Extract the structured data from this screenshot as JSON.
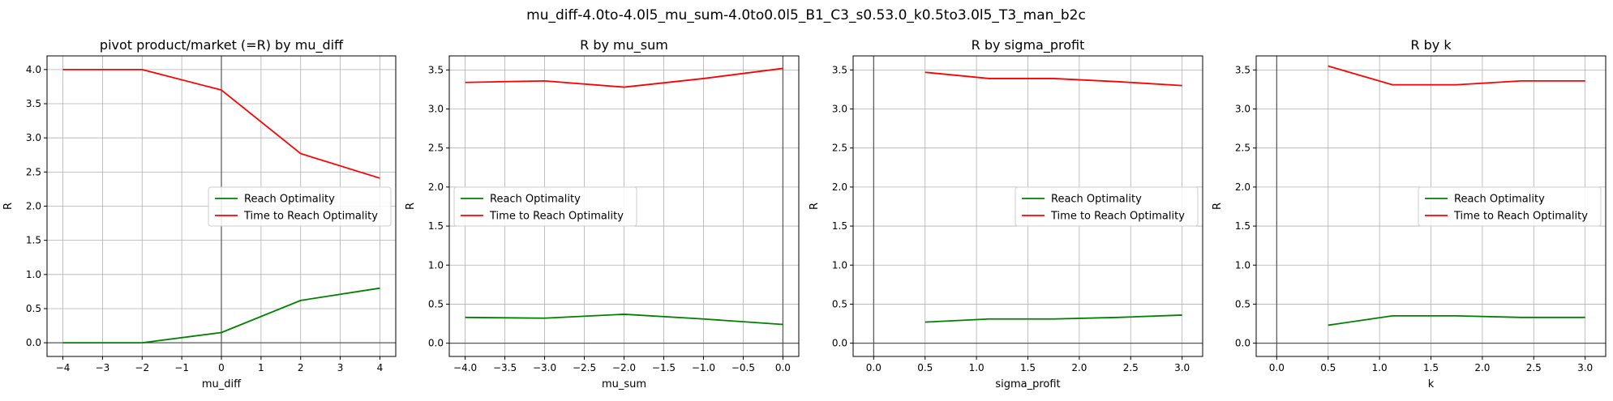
{
  "suptitle": "mu_diff-4.0to-4.0l5_mu_sum-4.0to0.0l5_B1_C3_s0.53.0_k0.5to3.0l5_T3_man_b2c",
  "colors": {
    "reach": "#008000",
    "time": "#ff0000"
  },
  "chart_data": [
    {
      "type": "line",
      "title": "pivot product/market (=R) by mu_diff",
      "xlabel": "mu_diff",
      "ylabel": "R",
      "xlim": [
        -4.4,
        4.4
      ],
      "ylim": [
        -0.2,
        4.2
      ],
      "xticks": [
        -4,
        -3,
        -2,
        -1,
        0,
        1,
        2,
        3,
        4
      ],
      "xtick_labels": [
        "−4",
        "−3",
        "−2",
        "−1",
        "0",
        "1",
        "2",
        "3",
        "4"
      ],
      "yticks": [
        0,
        0.5,
        1,
        1.5,
        2,
        2.5,
        3,
        3.5,
        4
      ],
      "ytick_labels": [
        "0.0",
        "0.5",
        "1.0",
        "1.5",
        "2.0",
        "2.5",
        "3.0",
        "3.5",
        "4.0"
      ],
      "grid": true,
      "legend_position": "center-right",
      "x": [
        -4,
        -2,
        0,
        2,
        4
      ],
      "series": [
        {
          "name": "Reach Optimality",
          "color": "#008000",
          "values": [
            0.0,
            0.0,
            0.15,
            0.62,
            0.8
          ]
        },
        {
          "name": "Time to Reach Optimality",
          "color": "#ff0000",
          "values": [
            4.0,
            4.0,
            3.7,
            2.77,
            2.41
          ]
        }
      ]
    },
    {
      "type": "line",
      "title": "R by mu_sum",
      "xlabel": "mu_sum",
      "ylabel": "R",
      "xlim": [
        -4.2,
        0.2
      ],
      "ylim": [
        -0.17,
        3.68
      ],
      "xticks": [
        -4,
        -3.5,
        -3,
        -2.5,
        -2,
        -1.5,
        -1,
        -0.5,
        0
      ],
      "xtick_labels": [
        "−4.0",
        "−3.5",
        "−3.0",
        "−2.5",
        "−2.0",
        "−1.5",
        "−1.0",
        "−0.5",
        "0.0"
      ],
      "yticks": [
        0,
        0.5,
        1,
        1.5,
        2,
        2.5,
        3,
        3.5
      ],
      "ytick_labels": [
        "0.0",
        "0.5",
        "1.0",
        "1.5",
        "2.0",
        "2.5",
        "3.0",
        "3.5"
      ],
      "grid": true,
      "legend_position": "center-left",
      "x": [
        -4,
        -3,
        -2,
        -1,
        0
      ],
      "series": [
        {
          "name": "Reach Optimality",
          "color": "#008000",
          "values": [
            0.33,
            0.32,
            0.37,
            0.31,
            0.24
          ]
        },
        {
          "name": "Time to Reach Optimality",
          "color": "#ff0000",
          "values": [
            3.34,
            3.36,
            3.28,
            3.39,
            3.52
          ]
        }
      ]
    },
    {
      "type": "line",
      "title": "R by sigma_profit",
      "xlabel": "sigma_profit",
      "ylabel": "R",
      "xlim": [
        -0.2,
        3.2
      ],
      "ylim": [
        -0.17,
        3.68
      ],
      "xticks": [
        0,
        0.5,
        1,
        1.5,
        2,
        2.5,
        3
      ],
      "xtick_labels": [
        "0.0",
        "0.5",
        "1.0",
        "1.5",
        "2.0",
        "2.5",
        "3.0"
      ],
      "yticks": [
        0,
        0.5,
        1,
        1.5,
        2,
        2.5,
        3,
        3.5
      ],
      "ytick_labels": [
        "0.0",
        "0.5",
        "1.0",
        "1.5",
        "2.0",
        "2.5",
        "3.0",
        "3.5"
      ],
      "grid": true,
      "legend_position": "center-right",
      "x": [
        0.5,
        1.125,
        1.75,
        2.375,
        3.0
      ],
      "series": [
        {
          "name": "Reach Optimality",
          "color": "#008000",
          "values": [
            0.27,
            0.31,
            0.31,
            0.33,
            0.36
          ]
        },
        {
          "name": "Time to Reach Optimality",
          "color": "#ff0000",
          "values": [
            3.47,
            3.39,
            3.39,
            3.35,
            3.3
          ]
        }
      ]
    },
    {
      "type": "line",
      "title": "R by k",
      "xlabel": "k",
      "ylabel": "R",
      "xlim": [
        -0.2,
        3.2
      ],
      "ylim": [
        -0.17,
        3.68
      ],
      "xticks": [
        0,
        0.5,
        1,
        1.5,
        2,
        2.5,
        3
      ],
      "xtick_labels": [
        "0.0",
        "0.5",
        "1.0",
        "1.5",
        "2.0",
        "2.5",
        "3.0"
      ],
      "yticks": [
        0,
        0.5,
        1,
        1.5,
        2,
        2.5,
        3,
        3.5
      ],
      "ytick_labels": [
        "0.0",
        "0.5",
        "1.0",
        "1.5",
        "2.0",
        "2.5",
        "3.0",
        "3.5"
      ],
      "grid": true,
      "legend_position": "center-right",
      "x": [
        0.5,
        1.125,
        1.75,
        2.375,
        3.0
      ],
      "series": [
        {
          "name": "Reach Optimality",
          "color": "#008000",
          "values": [
            0.23,
            0.35,
            0.35,
            0.33,
            0.33
          ]
        },
        {
          "name": "Time to Reach Optimality",
          "color": "#ff0000",
          "values": [
            3.55,
            3.31,
            3.31,
            3.36,
            3.36
          ]
        }
      ]
    }
  ]
}
